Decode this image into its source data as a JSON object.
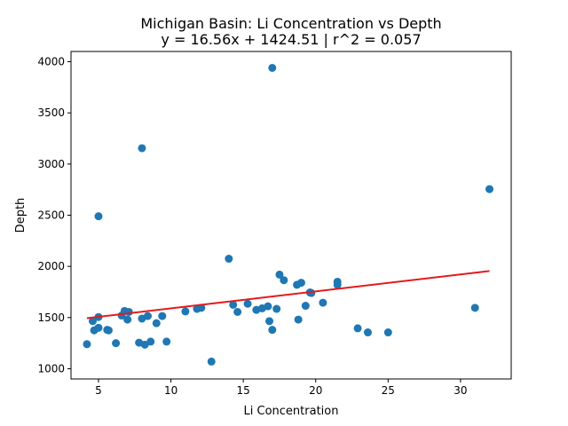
{
  "chart_data": {
    "type": "scatter",
    "title": "Michigan Basin: Li Concentration vs Depth",
    "subtitle": "y = 16.56x + 1424.51 | r^2 = 0.057",
    "xlabel": "Li Concentration",
    "ylabel": "Depth",
    "xlim": [
      3.1,
      33.5
    ],
    "ylim": [
      900,
      4100
    ],
    "xticks": [
      5,
      10,
      15,
      20,
      25,
      30
    ],
    "yticks": [
      1000,
      1500,
      2000,
      2500,
      3000,
      3500,
      4000
    ],
    "grid": false,
    "legend": "none",
    "point_color": "#1f77b4",
    "line_color": "#e41a1c",
    "trendline": {
      "slope": 16.56,
      "intercept": 1424.51,
      "x_range": [
        4.2,
        32.0
      ]
    },
    "points": [
      {
        "x": 4.2,
        "y": 1240
      },
      {
        "x": 4.6,
        "y": 1465
      },
      {
        "x": 4.7,
        "y": 1375
      },
      {
        "x": 5.0,
        "y": 1400
      },
      {
        "x": 5.0,
        "y": 1505
      },
      {
        "x": 5.0,
        "y": 2490
      },
      {
        "x": 5.6,
        "y": 1380
      },
      {
        "x": 5.7,
        "y": 1375
      },
      {
        "x": 6.2,
        "y": 1250
      },
      {
        "x": 6.6,
        "y": 1520
      },
      {
        "x": 6.8,
        "y": 1565
      },
      {
        "x": 7.0,
        "y": 1480
      },
      {
        "x": 7.1,
        "y": 1555
      },
      {
        "x": 7.8,
        "y": 1255
      },
      {
        "x": 8.0,
        "y": 1490
      },
      {
        "x": 8.0,
        "y": 3155
      },
      {
        "x": 8.2,
        "y": 1235
      },
      {
        "x": 8.4,
        "y": 1515
      },
      {
        "x": 8.6,
        "y": 1265
      },
      {
        "x": 9.0,
        "y": 1445
      },
      {
        "x": 9.4,
        "y": 1515
      },
      {
        "x": 9.7,
        "y": 1265
      },
      {
        "x": 11.0,
        "y": 1560
      },
      {
        "x": 11.8,
        "y": 1585
      },
      {
        "x": 12.1,
        "y": 1595
      },
      {
        "x": 12.8,
        "y": 1070
      },
      {
        "x": 14.0,
        "y": 2075
      },
      {
        "x": 14.3,
        "y": 1625
      },
      {
        "x": 14.6,
        "y": 1555
      },
      {
        "x": 15.3,
        "y": 1635
      },
      {
        "x": 15.9,
        "y": 1575
      },
      {
        "x": 16.3,
        "y": 1590
      },
      {
        "x": 16.7,
        "y": 1610
      },
      {
        "x": 16.8,
        "y": 1465
      },
      {
        "x": 17.0,
        "y": 1380
      },
      {
        "x": 17.0,
        "y": 3940
      },
      {
        "x": 17.3,
        "y": 1585
      },
      {
        "x": 17.5,
        "y": 1920
      },
      {
        "x": 17.8,
        "y": 1865
      },
      {
        "x": 18.7,
        "y": 1820
      },
      {
        "x": 18.8,
        "y": 1480
      },
      {
        "x": 19.0,
        "y": 1840
      },
      {
        "x": 19.3,
        "y": 1615
      },
      {
        "x": 19.6,
        "y": 1745
      },
      {
        "x": 19.7,
        "y": 1740
      },
      {
        "x": 20.5,
        "y": 1645
      },
      {
        "x": 21.5,
        "y": 1820
      },
      {
        "x": 21.5,
        "y": 1850
      },
      {
        "x": 22.9,
        "y": 1395
      },
      {
        "x": 23.6,
        "y": 1355
      },
      {
        "x": 25.0,
        "y": 1355
      },
      {
        "x": 31.0,
        "y": 1595
      },
      {
        "x": 32.0,
        "y": 2755
      }
    ]
  }
}
